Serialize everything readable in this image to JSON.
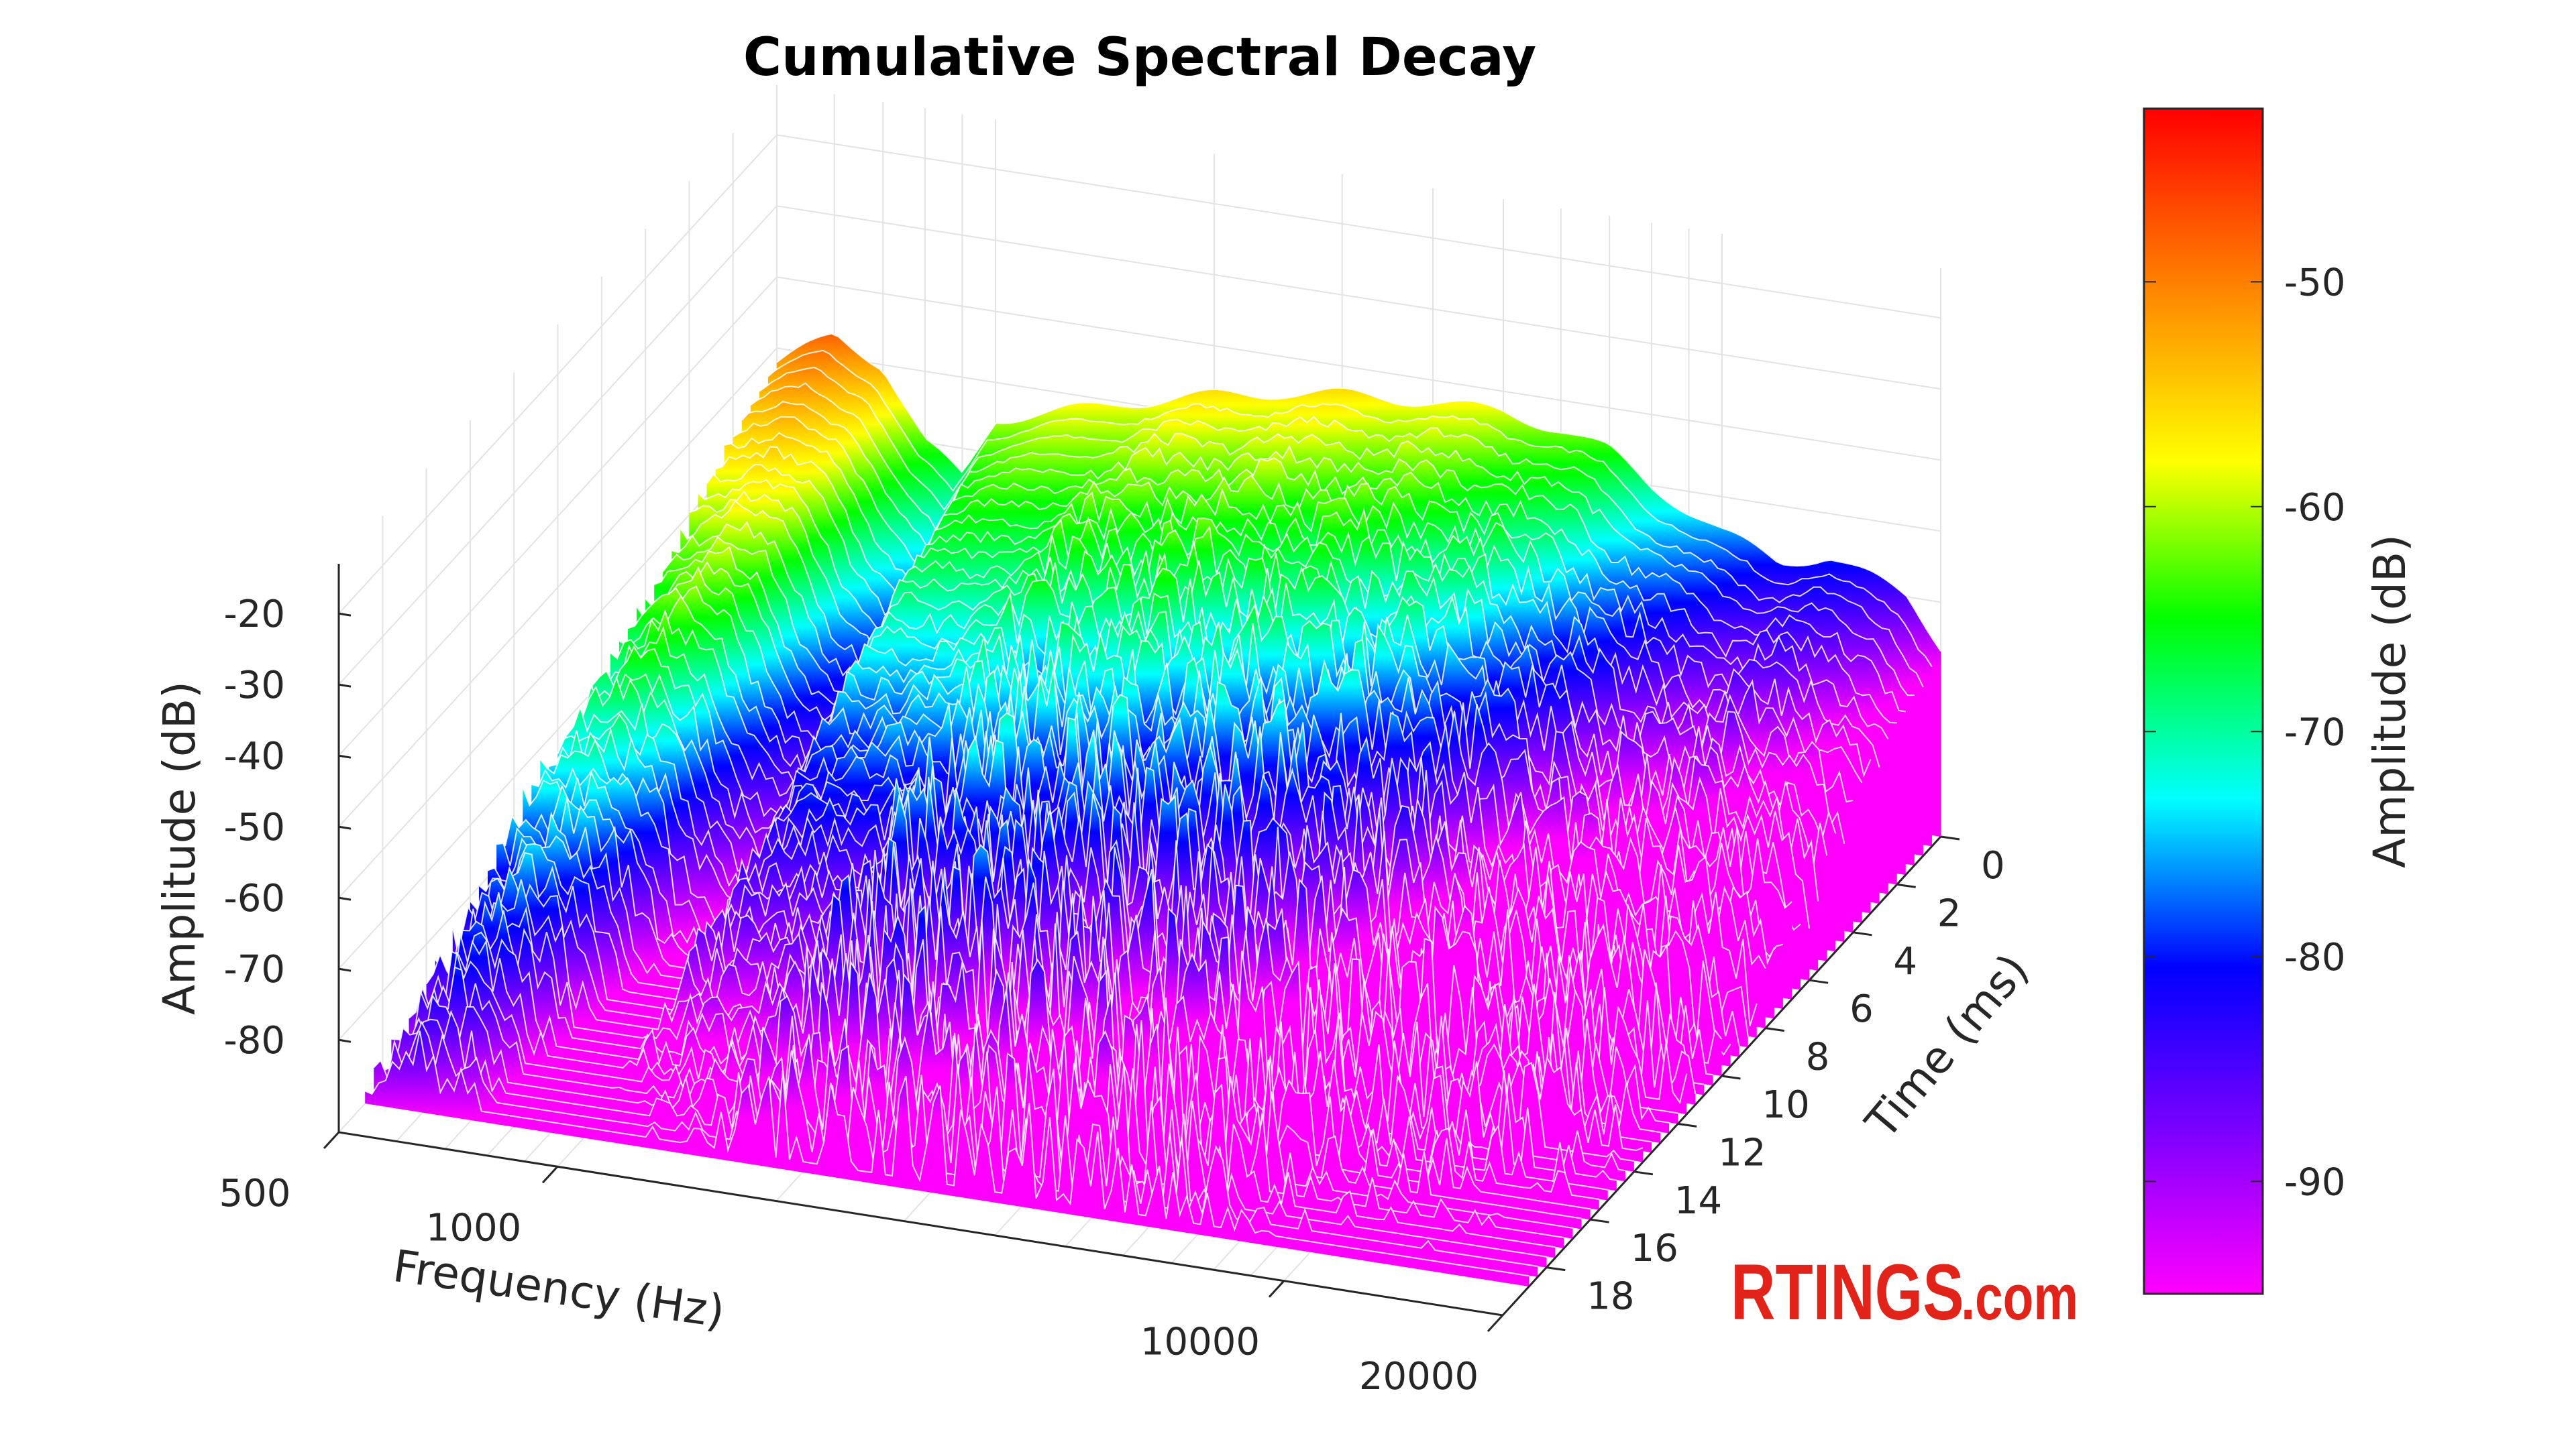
{
  "chart_data": {
    "type": "waterfall-3d",
    "title": "Cumulative Spectral Decay",
    "xlabel": "Frequency (Hz)",
    "ylabel": "Time (ms)",
    "zlabel": "Amplitude (dB)",
    "colorbar_label": "Amplitude (dB)",
    "x_scale": "log",
    "xlim": [
      500,
      20000
    ],
    "ylim": [
      0,
      20
    ],
    "zlim": [
      -93,
      -13
    ],
    "clim": [
      -95,
      -42.3
    ],
    "x_ticks": [
      500,
      1000,
      10000,
      20000
    ],
    "x_tick_labels": [
      "500",
      "1000",
      "10000",
      "20000"
    ],
    "y_ticks": [
      0,
      2,
      4,
      6,
      8,
      10,
      12,
      14,
      16,
      18
    ],
    "y_tick_labels": [
      "0",
      "2",
      "4",
      "6",
      "8",
      "10",
      "12",
      "14",
      "16",
      "18"
    ],
    "z_ticks": [
      -20,
      -30,
      -40,
      -50,
      -60,
      -70,
      -80
    ],
    "z_tick_labels": [
      "-20",
      "-30",
      "-40",
      "-50",
      "-60",
      "-70",
      "-80"
    ],
    "colorbar_ticks": [
      -50,
      -60,
      -70,
      -80,
      -90
    ],
    "colorbar_tick_labels": [
      "-50",
      "-60",
      "-70",
      "-80",
      "-90"
    ],
    "colormap": [
      {
        "value": -42.3,
        "color": "#ff0000"
      },
      {
        "value": -50,
        "color": "#ff8000"
      },
      {
        "value": -58,
        "color": "#ffff00"
      },
      {
        "value": -65,
        "color": "#00ff00"
      },
      {
        "value": -73,
        "color": "#00ffff"
      },
      {
        "value": -80.5,
        "color": "#0000ff"
      },
      {
        "value": -88,
        "color": "#8000ff"
      },
      {
        "value": -95,
        "color": "#ff00ff"
      }
    ],
    "frequencies": [
      500,
      600,
      700,
      800,
      900,
      1000,
      1200,
      1500,
      2000,
      2500,
      3000,
      4000,
      5000,
      6000,
      7000,
      8000,
      10000,
      12000,
      14000,
      16000,
      18000,
      20000
    ],
    "initial_amplitude_db": [
      -52,
      -47,
      -50,
      -60,
      -64,
      -55,
      -53,
      -50,
      -47,
      -45,
      -44,
      -43,
      -43,
      -44,
      -46,
      -50,
      -55,
      -58,
      -56,
      -58,
      -60,
      -66
    ],
    "decay_db_per_ms": [
      2.1,
      2.0,
      2.1,
      2.4,
      2.5,
      2.2,
      2.2,
      2.2,
      2.3,
      2.3,
      2.4,
      2.4,
      2.4,
      2.5,
      2.5,
      2.5,
      2.5,
      2.4,
      2.4,
      2.5,
      2.5,
      2.6
    ],
    "time_step_ms": 0.4
  },
  "watermark": {
    "brand": "RTINGS",
    "suffix": ".com"
  }
}
